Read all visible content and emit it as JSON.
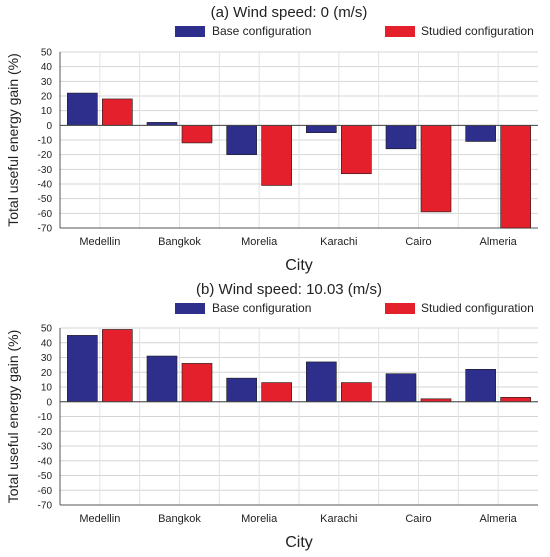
{
  "chart_data": [
    {
      "type": "bar",
      "title": "(a) Wind speed: 0 (m/s)",
      "xlabel": "City",
      "ylabel": "Total useful energy gain (%)",
      "categories": [
        "Medellin",
        "Bangkok",
        "Morelia",
        "Karachi",
        "Cairo",
        "Almeria"
      ],
      "ylim": [
        -70,
        50
      ],
      "yticks": [
        50,
        40,
        30,
        20,
        10,
        0,
        -10,
        -20,
        -30,
        -40,
        -50,
        -60,
        -70
      ],
      "grid": true,
      "legend_position": "top",
      "series": [
        {
          "name": "Base configuration",
          "color": "#2e2f8c",
          "values": [
            22,
            2,
            -20,
            -5,
            -16,
            -11
          ]
        },
        {
          "name": "Studied configuration",
          "color": "#e3202b",
          "values": [
            18,
            -12,
            -41,
            -33,
            -59,
            -70
          ]
        }
      ]
    },
    {
      "type": "bar",
      "title": "(b) Wind speed: 10.03 (m/s)",
      "xlabel": "City",
      "ylabel": "Total useful energy gain (%)",
      "categories": [
        "Medellin",
        "Bangkok",
        "Morelia",
        "Karachi",
        "Cairo",
        "Almeria"
      ],
      "ylim": [
        -70,
        50
      ],
      "yticks": [
        50,
        40,
        30,
        20,
        10,
        0,
        -10,
        -20,
        -30,
        -40,
        -50,
        -60,
        -70
      ],
      "grid": true,
      "legend_position": "top",
      "series": [
        {
          "name": "Base configuration",
          "color": "#2e2f8c",
          "values": [
            45,
            31,
            16,
            27,
            19,
            22
          ]
        },
        {
          "name": "Studied configuration",
          "color": "#e3202b",
          "values": [
            49,
            26,
            13,
            13,
            2,
            3
          ]
        }
      ]
    }
  ]
}
